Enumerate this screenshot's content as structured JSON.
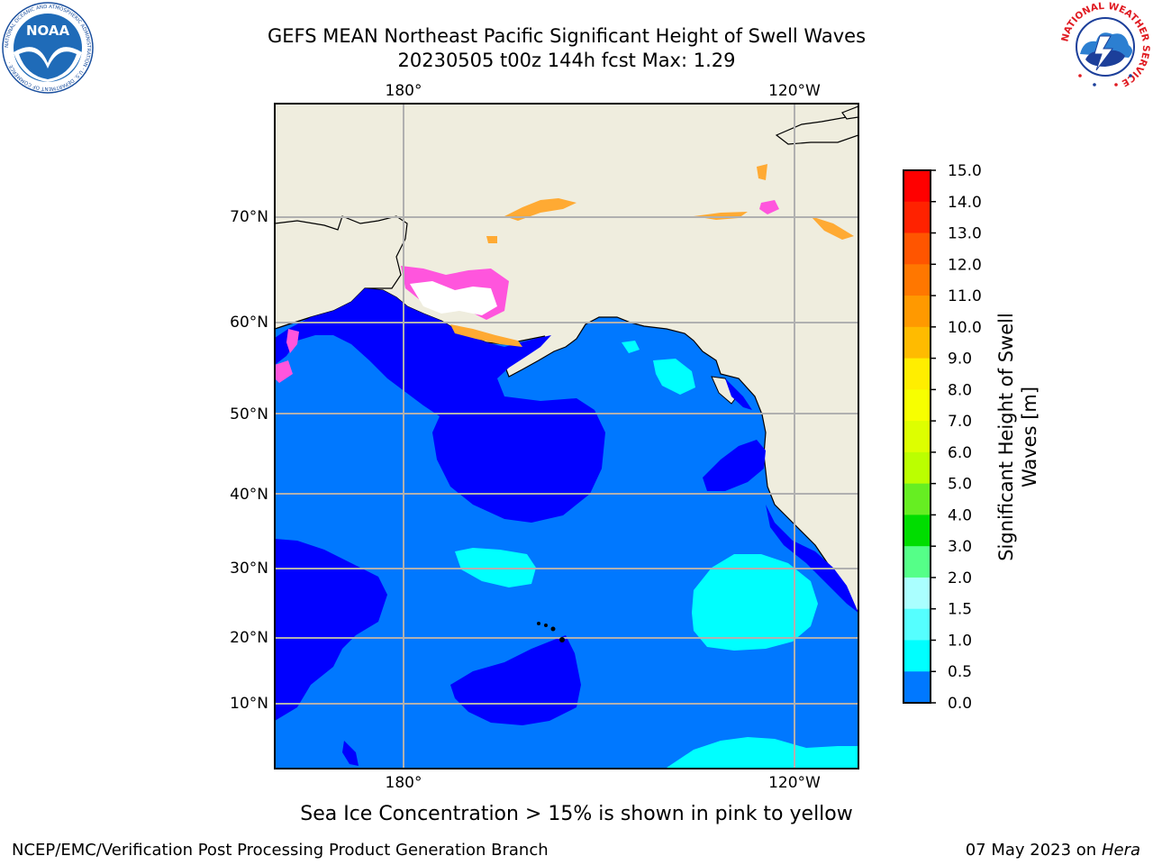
{
  "header": {
    "title_line1": "GEFS MEAN Northeast Pacific Significant Height of Swell Waves",
    "title_line2": "20230505 t00z 144h fcst   Max: 1.29"
  },
  "map": {
    "lon_labels_top": [
      "180°",
      "120°W"
    ],
    "lon_labels_bottom": [
      "180°",
      "120°W"
    ],
    "lat_labels": [
      "70°N",
      "60°N",
      "50°N",
      "40°N",
      "30°N",
      "20°N",
      "10°N"
    ],
    "colors": {
      "land": "#efedde",
      "ocean_0_5_1_0": "#0078ff",
      "ocean_0_0_5": "#0000ff",
      "ocean_1_0_1_5": "#00ffff",
      "sea_ice": "#ff55dd"
    }
  },
  "colorbar": {
    "label_line1": "Significant Height of Swell",
    "label_line2": "Waves [m]",
    "ticks": [
      "15.0",
      "14.0",
      "13.0",
      "12.0",
      "11.0",
      "10.0",
      "9.0",
      "8.0",
      "7.0",
      "6.0",
      "5.0",
      "4.0",
      "3.0",
      "2.0",
      "1.5",
      "1.0",
      "0.5",
      "0.0"
    ],
    "colors": [
      "#ff0000",
      "#ff2200",
      "#ff5500",
      "#ff7700",
      "#ff9900",
      "#ffbb00",
      "#ffee00",
      "#f7ff00",
      "#ddff00",
      "#bbff00",
      "#66ee22",
      "#00dd00",
      "#55ff88",
      "#aaffff",
      "#55ffff",
      "#00ffff",
      "#0078ff",
      "#0000ff"
    ]
  },
  "footer": {
    "sea_ice_note": "Sea Ice Concentration > 15% is shown in pink to yellow",
    "credit": "NCEP/EMC/Verification Post Processing Product Generation Branch",
    "date_text": "07 May 2023 on",
    "date_machine": "Hera"
  },
  "logos": {
    "noaa_text": "NOAA",
    "noaa_ring": "NATIONAL OCEANIC AND ATMOSPHERIC ADMINISTRATION · U.S. DEPARTMENT OF COMMERCE ·",
    "nws_ring": "NATIONAL WEATHER SERVICE"
  }
}
